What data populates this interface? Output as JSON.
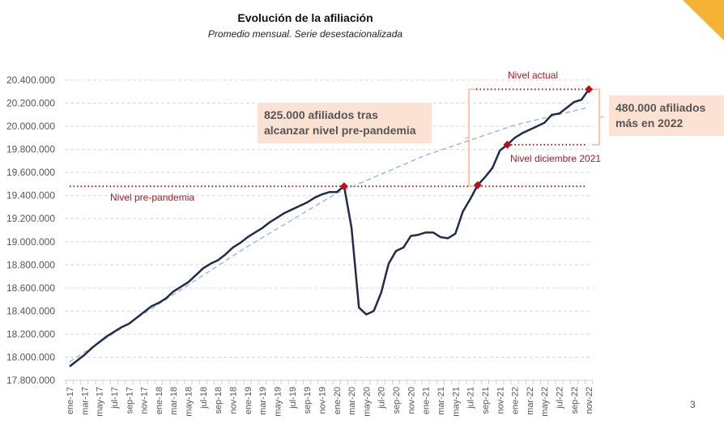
{
  "page_number": "3",
  "colors": {
    "series": "#1f2d4a",
    "trend": "#9bbbd8",
    "reference": "#b5121b",
    "annotation_box": "#fbe2d2",
    "bracket": "#f4c9ae",
    "corner": "#f5b335"
  },
  "chart_data": {
    "type": "line",
    "title": "Evolución de la afiliación",
    "subtitle": "Promedio mensual. Serie desestacionalizada",
    "xlabel": "",
    "ylabel": "",
    "ylim": [
      17800000,
      20400000
    ],
    "yticks": [
      "17.800.000",
      "18.000.000",
      "18.200.000",
      "18.400.000",
      "18.600.000",
      "18.800.000",
      "19.000.000",
      "19.200.000",
      "19.400.000",
      "19.600.000",
      "19.800.000",
      "20.000.000",
      "20.200.000",
      "20.400.000"
    ],
    "ytick_values": [
      17800000,
      18000000,
      18200000,
      18400000,
      18600000,
      18800000,
      19000000,
      19200000,
      19400000,
      19600000,
      19800000,
      20000000,
      20200000,
      20400000
    ],
    "grid": true,
    "x": [
      "ene-17",
      "feb-17",
      "mar-17",
      "abr-17",
      "may-17",
      "jun-17",
      "jul-17",
      "ago-17",
      "sep-17",
      "oct-17",
      "nov-17",
      "dic-17",
      "ene-18",
      "feb-18",
      "mar-18",
      "abr-18",
      "may-18",
      "jun-18",
      "jul-18",
      "ago-18",
      "sep-18",
      "oct-18",
      "nov-18",
      "dic-18",
      "ene-19",
      "feb-19",
      "mar-19",
      "abr-19",
      "may-19",
      "jun-19",
      "jul-19",
      "ago-19",
      "sep-19",
      "oct-19",
      "nov-19",
      "dic-19",
      "ene-20",
      "feb-20",
      "mar-20",
      "abr-20",
      "may-20",
      "jun-20",
      "jul-20",
      "ago-20",
      "sep-20",
      "oct-20",
      "nov-20",
      "dic-20",
      "ene-21",
      "feb-21",
      "mar-21",
      "abr-21",
      "may-21",
      "jun-21",
      "jul-21",
      "ago-21",
      "sep-21",
      "oct-21",
      "nov-21",
      "dic-21",
      "ene-22",
      "feb-22",
      "mar-22",
      "abr-22",
      "may-22",
      "jun-22",
      "jul-22",
      "ago-22",
      "sep-22",
      "oct-22",
      "nov-22"
    ],
    "xtick_labels": [
      "ene-17",
      "mar-17",
      "may-17",
      "jul-17",
      "sep-17",
      "nov-17",
      "ene-18",
      "mar-18",
      "may-18",
      "jul-18",
      "sep-18",
      "nov-18",
      "ene-19",
      "mar-19",
      "may-19",
      "jul-19",
      "sep-19",
      "nov-19",
      "ene-20",
      "mar-20",
      "may-20",
      "jul-20",
      "sep-20",
      "nov-20",
      "ene-21",
      "mar-21",
      "may-21",
      "jul-21",
      "sep-21",
      "nov-21",
      "ene-22",
      "mar-22",
      "may-22",
      "jul-22",
      "sep-22",
      "nov-22"
    ],
    "series": [
      {
        "values": [
          17920000,
          17970000,
          18020000,
          18080000,
          18130000,
          18180000,
          18220000,
          18260000,
          18290000,
          18340000,
          18390000,
          18440000,
          18470000,
          18510000,
          18570000,
          18610000,
          18650000,
          18710000,
          18770000,
          18810000,
          18840000,
          18890000,
          18950000,
          18990000,
          19040000,
          19080000,
          19120000,
          19170000,
          19210000,
          19250000,
          19280000,
          19310000,
          19340000,
          19380000,
          19410000,
          19430000,
          19430000,
          19480000,
          19120000,
          18430000,
          18370000,
          18400000,
          18560000,
          18810000,
          18920000,
          18950000,
          19050000,
          19060000,
          19080000,
          19080000,
          19040000,
          19030000,
          19070000,
          19260000,
          19370000,
          19490000,
          19560000,
          19640000,
          19790000,
          19840000,
          19900000,
          19940000,
          19970000,
          20000000,
          20030000,
          20100000,
          20110000,
          20160000,
          20210000,
          20230000,
          20320000
        ]
      },
      {
        "style": "dashed",
        "points": [
          [
            "ene-17",
            17960000
          ],
          [
            "ene-18",
            18460000
          ],
          [
            "ene-19",
            18960000
          ],
          [
            "ene-20",
            19420000
          ],
          [
            "ene-21",
            19750000
          ],
          [
            "ene-22",
            20010000
          ],
          [
            "nov-22",
            20165000
          ]
        ]
      }
    ],
    "markers": [
      {
        "x": "feb-20",
        "y": 19480000
      },
      {
        "x": "ago-21",
        "y": 19490000
      },
      {
        "x": "dic-21",
        "y": 19840000
      },
      {
        "x": "nov-22",
        "y": 20320000
      }
    ],
    "reference_lines": [
      {
        "label": "Nivel pre-pandemia",
        "y": 19480000,
        "from": "ene-17",
        "to": "nov-22"
      },
      {
        "label": "Nivel diciembre 2021",
        "y": 19840000,
        "from": "dic-21",
        "to": "nov-22"
      },
      {
        "label": "Nivel actual",
        "y": 20320000,
        "from": "ago-21",
        "to": "nov-22"
      }
    ],
    "annotations": [
      {
        "lines": [
          "825.000 afiliados tras",
          "alcanzar nivel pre-pandemia"
        ]
      },
      {
        "lines": [
          "480.000 afiliados",
          "más en 2022"
        ]
      }
    ]
  }
}
